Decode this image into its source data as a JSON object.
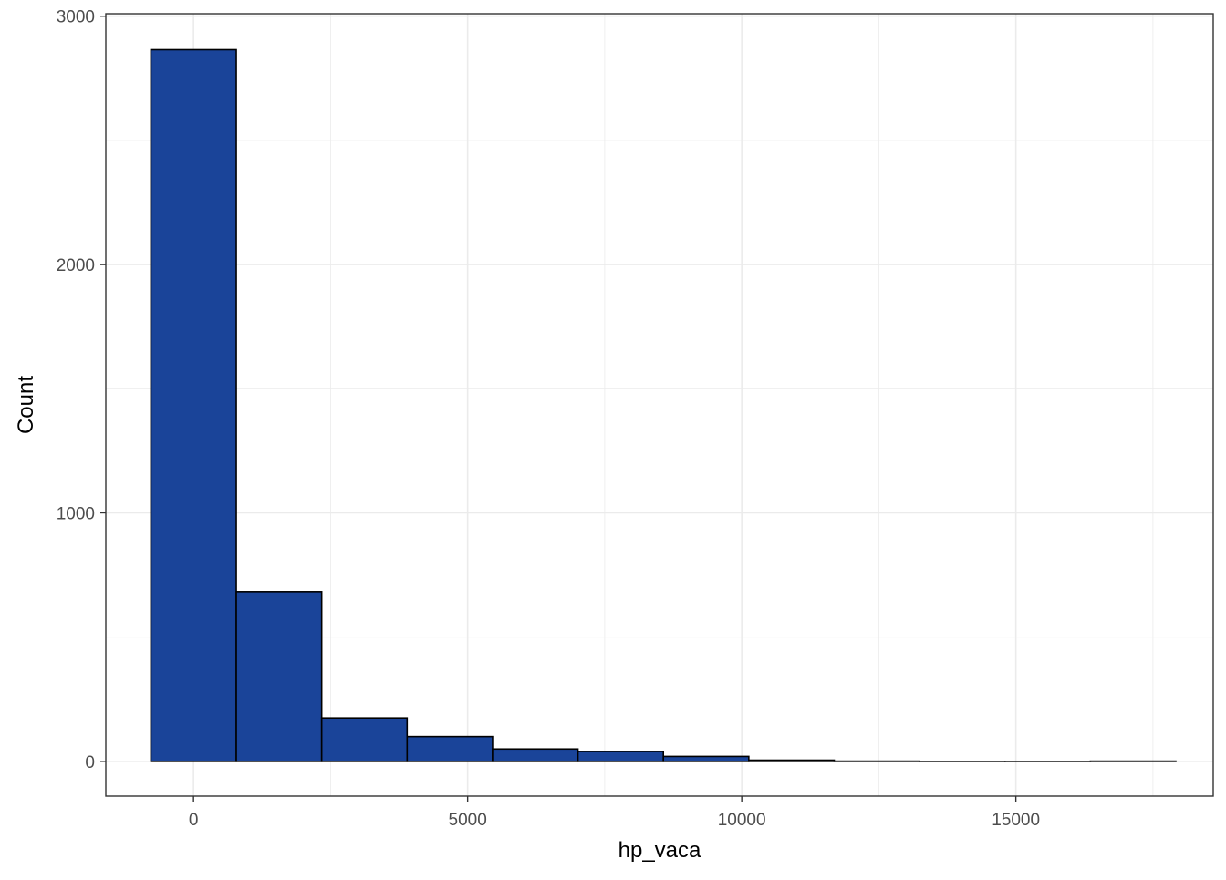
{
  "chart_data": {
    "type": "bar",
    "title": "",
    "xlabel": "hp_vaca",
    "ylabel": "Count",
    "xlim": [
      -1600,
      18600
    ],
    "ylim": [
      -140,
      3010
    ],
    "grid": true,
    "x_ticks": [
      0,
      5000,
      10000,
      15000
    ],
    "x_tick_labels": [
      "0",
      "5000",
      "10000",
      "15000"
    ],
    "y_ticks": [
      0,
      1000,
      2000,
      3000
    ],
    "y_tick_labels": [
      "0",
      "1000",
      "2000",
      "3000"
    ],
    "bins": [
      {
        "x0": -778,
        "x1": 780,
        "count": 2865
      },
      {
        "x0": 780,
        "x1": 2338,
        "count": 683
      },
      {
        "x0": 2338,
        "x1": 3896,
        "count": 175
      },
      {
        "x0": 3896,
        "x1": 5454,
        "count": 100
      },
      {
        "x0": 5454,
        "x1": 7012,
        "count": 50
      },
      {
        "x0": 7012,
        "x1": 8570,
        "count": 40
      },
      {
        "x0": 8570,
        "x1": 10128,
        "count": 20
      },
      {
        "x0": 10128,
        "x1": 11686,
        "count": 5
      },
      {
        "x0": 11686,
        "x1": 13244,
        "count": 1
      },
      {
        "x0": 13244,
        "x1": 14802,
        "count": 0
      },
      {
        "x0": 14802,
        "x1": 16360,
        "count": 0
      },
      {
        "x0": 16360,
        "x1": 17918,
        "count": 1
      }
    ],
    "colors": {
      "bar_fill": "#1a4499",
      "bar_stroke": "#000000",
      "grid": "#ebebeb",
      "panel_border": "#333333"
    }
  }
}
